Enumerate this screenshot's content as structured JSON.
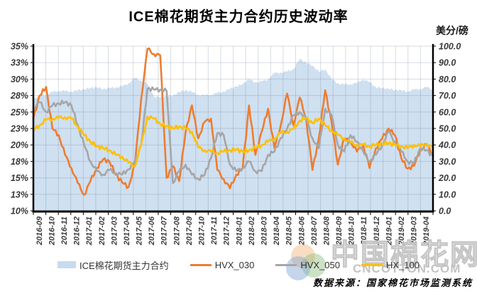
{
  "source_note": "数据来源：国家棉花市场监测系统",
  "watermark": {
    "cn_text": "中国棉花网",
    "en_text": "CNCOTTON.COM",
    "logo_colors": [
      "#F2B377",
      "#8FBE7F",
      "#7FA3D4"
    ]
  },
  "chart_data": {
    "type": "area+line",
    "title": "ICE棉花期货主力合约历史波动率",
    "grid": true,
    "legend_position": "bottom",
    "categories": [
      "2016-09",
      "2016-10",
      "2016-11",
      "2016-12",
      "2017-01",
      "2017-02",
      "2017-03",
      "2017-04",
      "2017-05",
      "2017-06",
      "2017-07",
      "2017-08",
      "2017-09",
      "2017-10",
      "2017-11",
      "2017-12",
      "2018-01",
      "2018-02",
      "2018-03",
      "2018-04",
      "2018-05",
      "2018-06",
      "2018-07",
      "2018-08",
      "2018-09",
      "2018-10",
      "2018-11",
      "2018-12",
      "2019-01",
      "2019-02",
      "2019-03",
      "2019-04"
    ],
    "points_per_month": 2,
    "left_axis": {
      "min": 10,
      "max": 35,
      "unit": "%",
      "ticks": [
        "35%",
        "33%",
        "30%",
        "28%",
        "25%",
        "23%",
        "20%",
        "18%",
        "15%",
        "13%",
        "10%"
      ],
      "tick_values": [
        35,
        32.5,
        30,
        27.5,
        25,
        22.5,
        20,
        17.5,
        15,
        12.5,
        10
      ]
    },
    "right_axis": {
      "min": 0,
      "max": 100,
      "label": "美分/磅",
      "ticks": [
        "100.0",
        "90.0",
        "80.0",
        "70.0",
        "60.0",
        "50.0",
        "40.0",
        "30.0",
        "20.0",
        "10.0",
        "0.0"
      ],
      "tick_values": [
        100,
        90,
        80,
        70,
        60,
        50,
        40,
        30,
        20,
        10,
        0
      ]
    },
    "area_series": {
      "name": "ICE棉花期货主力合约",
      "axis": "right",
      "color": "#CFE0F1",
      "values": [
        68,
        70,
        70.5,
        72,
        73,
        72.5,
        72.5,
        73,
        74,
        74.5,
        75,
        74,
        74.5,
        75,
        75.5,
        77.5,
        80.5,
        79,
        77,
        69.5,
        69,
        69.5,
        70,
        72,
        73.5,
        72,
        70.5,
        70,
        70.5,
        71.5,
        72.5,
        74,
        75.5,
        77,
        80,
        78,
        78.5,
        80,
        83.5,
        84,
        84.5,
        86,
        92,
        90,
        88,
        84.5,
        86,
        80,
        77.5,
        76.5,
        77,
        77.5,
        80,
        78,
        75,
        74.5,
        74,
        73.5,
        73,
        72.5,
        73.5,
        74,
        75,
        73.5
      ]
    },
    "line_series": [
      {
        "name": "HVX_030",
        "axis": "left",
        "color": "#ED7D31",
        "values": [
          24.0,
          27.5,
          28.8,
          22.5,
          21.5,
          18.5,
          16.5,
          14.2,
          12.4,
          14.5,
          16.5,
          17.8,
          17.5,
          15.5,
          14.3,
          13.6,
          17.0,
          27.0,
          34.6,
          33.8,
          33.6,
          15.0,
          16.8,
          14.5,
          22.0,
          26.0,
          21.0,
          23.5,
          24.0,
          16.2,
          14.8,
          13.4,
          15.5,
          16.5,
          26.0,
          18.5,
          22.0,
          25.5,
          19.5,
          23.0,
          27.8,
          23.0,
          27.2,
          24.0,
          16.2,
          21.0,
          28.3,
          23.5,
          17.0,
          21.0,
          20.5,
          19.0,
          20.0,
          16.5,
          19.5,
          21.0,
          22.5,
          21.5,
          18.0,
          16.4,
          16.8,
          19.3,
          20.0,
          18.5
        ]
      },
      {
        "name": "HVX_050",
        "axis": "left",
        "color": "#A6A6A6",
        "values": [
          25.5,
          26.5,
          25.0,
          26.0,
          26.3,
          26.5,
          26.0,
          23.0,
          20.0,
          17.5,
          16.0,
          15.5,
          16.2,
          15.7,
          15.5,
          16.3,
          17.5,
          20.0,
          28.6,
          28.4,
          28.4,
          28.2,
          14.2,
          16.0,
          17.0,
          15.5,
          14.8,
          15.5,
          18.0,
          21.8,
          21.5,
          17.0,
          16.0,
          16.5,
          17.5,
          16.0,
          16.0,
          18.5,
          19.0,
          21.0,
          22.5,
          24.5,
          25.0,
          24.0,
          21.0,
          19.5,
          25.5,
          24.5,
          20.0,
          19.0,
          21.5,
          20.5,
          19.0,
          17.5,
          18.5,
          20.0,
          22.0,
          20.5,
          19.0,
          17.5,
          17.2,
          19.5,
          19.2,
          18.3
        ]
      },
      {
        "name": "HX_100",
        "axis": "left",
        "color": "#FFC000",
        "values": [
          22.3,
          23.0,
          23.8,
          24.0,
          24.1,
          24.2,
          24.0,
          22.8,
          21.5,
          20.5,
          19.8,
          19.5,
          19.2,
          18.5,
          18.2,
          17.3,
          16.8,
          20.0,
          24.3,
          24.0,
          23.2,
          22.8,
          22.5,
          22.8,
          22.5,
          22.0,
          19.6,
          19.2,
          19.0,
          18.8,
          19.0,
          19.2,
          19.3,
          19.0,
          19.2,
          19.5,
          20.0,
          20.5,
          21.0,
          21.8,
          22.0,
          22.4,
          23.7,
          24.1,
          23.3,
          24.0,
          23.0,
          22.2,
          21.5,
          21.0,
          20.3,
          20.0,
          20.0,
          19.8,
          20.0,
          20.2,
          20.3,
          20.0,
          19.8,
          19.5,
          20.0,
          19.8,
          20.2,
          19.5
        ]
      }
    ]
  }
}
